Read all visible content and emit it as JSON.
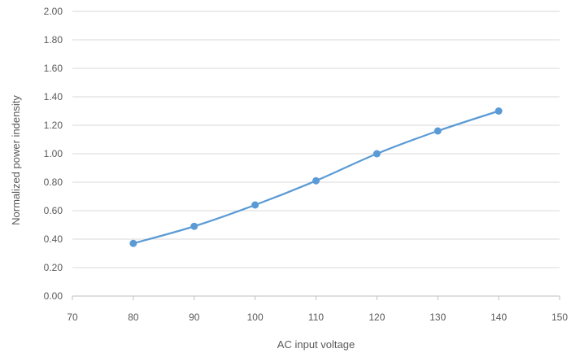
{
  "chart_data": {
    "type": "line",
    "title": "",
    "xlabel": "AC input voltage",
    "ylabel": "Normalized power indensity",
    "xlim": [
      70,
      150
    ],
    "ylim": [
      0,
      2
    ],
    "x_ticks": [
      "70",
      "80",
      "90",
      "100",
      "110",
      "120",
      "130",
      "140",
      "150"
    ],
    "y_ticks": [
      "0.00",
      "0.20",
      "0.40",
      "0.60",
      "0.80",
      "1.00",
      "1.20",
      "1.40",
      "1.60",
      "1.80",
      "2.00"
    ],
    "grid": "horizontal",
    "legend": "none",
    "series": [
      {
        "x": [
          80,
          90,
          100,
          110,
          120,
          130,
          140
        ],
        "y": [
          0.37,
          0.49,
          0.64,
          0.81,
          1.0,
          1.16,
          1.3
        ],
        "color": "#5b9bd5"
      }
    ],
    "colors": {
      "grid": "#d9d9d9",
      "axis": "#bfbfbf",
      "text": "#595959"
    }
  }
}
